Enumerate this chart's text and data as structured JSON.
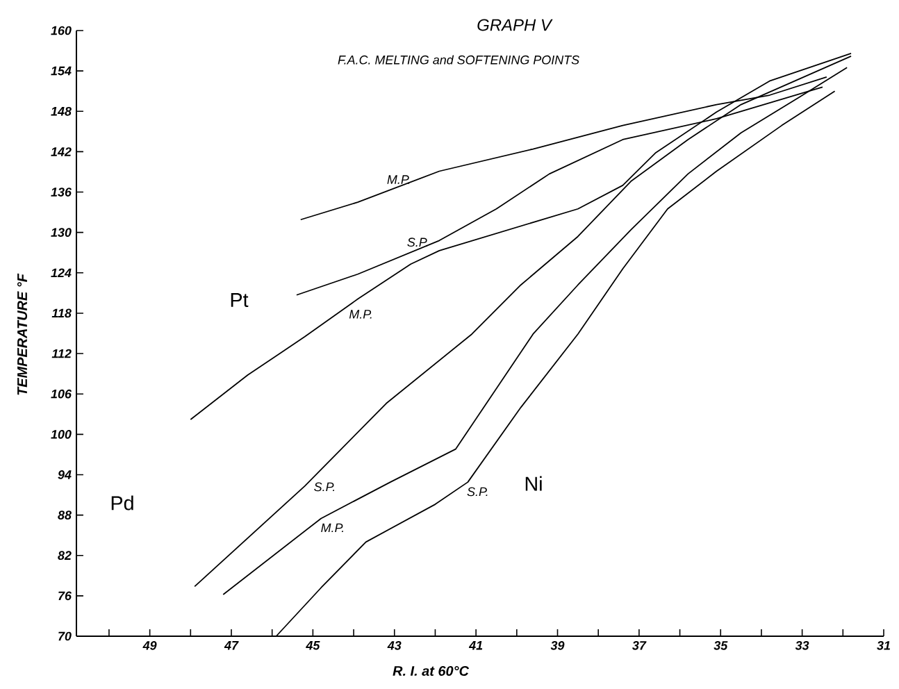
{
  "chart_data": {
    "type": "line",
    "title": "GRAPH V",
    "subtitle": "F.A.C. MELTING and SOFTENING POINTS",
    "xlabel": "R. I. at 60°C",
    "ylabel": "TEMPERATURE °F",
    "xlim": [
      50.8,
      31
    ],
    "ylim": [
      70,
      160
    ],
    "xticks": [
      {
        "value": 50,
        "label": null
      },
      49,
      {
        "value": 48,
        "label": null
      },
      47,
      {
        "value": 46,
        "label": null
      },
      45,
      {
        "value": 44,
        "label": null
      },
      43,
      {
        "value": 42,
        "label": null
      },
      41,
      {
        "value": 40,
        "label": null
      },
      39,
      {
        "value": 38,
        "label": null
      },
      37,
      {
        "value": 36,
        "label": null
      },
      35,
      {
        "value": 34,
        "label": null
      },
      33,
      {
        "value": 32,
        "label": null
      },
      31
    ],
    "yticks": [
      70,
      76,
      82,
      88,
      94,
      100,
      106,
      112,
      118,
      124,
      130,
      136,
      142,
      148,
      154,
      160
    ],
    "series": [
      {
        "name": "M.P.",
        "color": "#000000",
        "x": [
          45.3,
          43.9,
          41.9,
          39.6,
          37.4,
          35.1,
          33.8,
          32.4
        ],
        "values": [
          131.9,
          134.5,
          139.1,
          142.4,
          145.9,
          149.0,
          150.4,
          153.1
        ]
      },
      {
        "name": "S.P.",
        "color": "#000000",
        "x": [
          45.4,
          43.9,
          41.9,
          40.5,
          39.2,
          37.4,
          35.1,
          32.5
        ],
        "values": [
          120.7,
          123.8,
          128.8,
          133.5,
          138.7,
          143.8,
          146.9,
          151.6
        ]
      },
      {
        "name": "M.P.",
        "color": "#000000",
        "x": [
          48.0,
          46.6,
          45.2,
          43.9,
          42.6,
          41.9,
          38.5,
          37.4,
          36.6,
          35.1,
          33.8,
          31.8
        ],
        "values": [
          102.2,
          108.8,
          114.5,
          120.1,
          125.3,
          127.3,
          133.5,
          137.0,
          141.8,
          147.9,
          152.5,
          156.6
        ]
      },
      {
        "name": "S.P.",
        "color": "#000000",
        "x": [
          47.9,
          45.2,
          43.2,
          41.1,
          39.9,
          38.5,
          37.2,
          35.8,
          34.5,
          31.8
        ],
        "values": [
          77.4,
          92.3,
          104.6,
          114.9,
          122.2,
          129.4,
          137.6,
          143.8,
          149.0,
          156.2
        ]
      },
      {
        "name": "M.P.",
        "color": "#000000",
        "x": [
          47.2,
          44.8,
          43.1,
          41.5,
          39.6,
          38.5,
          37.2,
          35.8,
          34.5,
          33.1,
          31.9
        ],
        "values": [
          76.2,
          87.5,
          92.9,
          97.8,
          114.9,
          122.2,
          130.4,
          138.7,
          144.8,
          150.0,
          154.5
        ]
      },
      {
        "name": "S.P.",
        "color": "#000000",
        "x": [
          45.9,
          44.8,
          43.7,
          42.0,
          41.2,
          39.9,
          38.5,
          37.4,
          36.3,
          35.1,
          33.5,
          32.2
        ],
        "values": [
          70.0,
          77.2,
          84.0,
          89.6,
          92.9,
          104.0,
          114.9,
          124.6,
          133.5,
          139.1,
          145.9,
          151.0
        ]
      }
    ],
    "annotations": [
      "Pt",
      "Pd",
      "Ni"
    ]
  }
}
